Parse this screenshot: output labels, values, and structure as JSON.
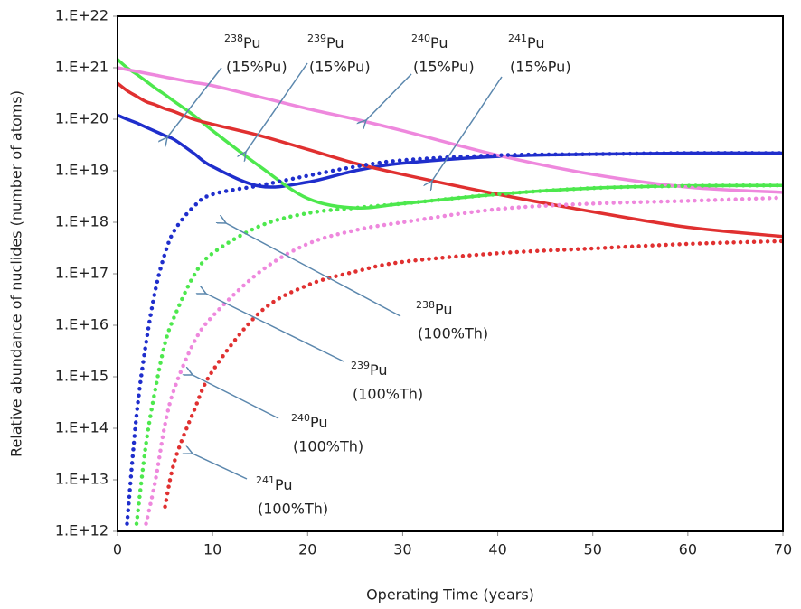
{
  "chart_data": {
    "type": "line",
    "y_log": true,
    "grid": false,
    "x_label": "Operating Time (years)",
    "y_label": "Relative abundance of nuclides (number of atoms)",
    "xlim": [
      0,
      70
    ],
    "xticks": [
      0,
      10,
      20,
      30,
      40,
      50,
      60,
      70
    ],
    "ylim": [
      1000000000000.0,
      1e+22
    ],
    "yticks": [
      {
        "value": 1000000000000.0,
        "label": "1.E+12"
      },
      {
        "value": 10000000000000.0,
        "label": "1.E+13"
      },
      {
        "value": 100000000000000.0,
        "label": "1.E+14"
      },
      {
        "value": 1000000000000000.0,
        "label": "1.E+15"
      },
      {
        "value": 1e+16,
        "label": "1.E+16"
      },
      {
        "value": 1e+17,
        "label": "1.E+17"
      },
      {
        "value": 1e+18,
        "label": "1.E+18"
      },
      {
        "value": 1e+19,
        "label": "1.E+19"
      },
      {
        "value": 1e+20,
        "label": "1.E+20"
      },
      {
        "value": 1e+21,
        "label": "1.E+21"
      },
      {
        "value": 1e+22,
        "label": "1.E+22"
      }
    ],
    "x": [
      0,
      1,
      2,
      3,
      4,
      5,
      6,
      8,
      10,
      15,
      20,
      25,
      30,
      40,
      50,
      60,
      70
    ],
    "series": [
      {
        "color": "#1f2ecc",
        "line_style": "solid",
        "values": [
          1.2e+20,
          1e+20,
          8.5e+19,
          7e+19,
          5.8e+19,
          4.8e+19,
          4e+19,
          2.2e+19,
          1.2e+19,
          5e+18,
          6e+18,
          1e+19,
          1.4e+19,
          1.9e+19,
          2.1e+19,
          2.2e+19,
          2.2e+19
        ]
      },
      {
        "color": "#4de84d",
        "line_style": "solid",
        "values": [
          1.45e+21,
          1e+21,
          7.5e+20,
          5.5e+20,
          4e+20,
          3e+20,
          2.2e+20,
          1.2e+20,
          6e+19,
          1.2e+19,
          2.9e+18,
          1.9e+18,
          2.3e+18,
          3.5e+18,
          4.6e+18,
          5.1e+18,
          5.2e+18
        ]
      },
      {
        "color": "#ee88dd",
        "line_style": "solid",
        "values": [
          1e+21,
          9.2e+20,
          8.5e+20,
          7.8e+20,
          7.2e+20,
          6.6e+20,
          6.1e+20,
          5.2e+20,
          4.5e+20,
          2.7e+20,
          1.6e+20,
          1e+20,
          6e+19,
          2e+19,
          8.5e+18,
          4.8e+18,
          3.8e+18
        ]
      },
      {
        "color": "#e03030",
        "line_style": "solid",
        "values": [
          5e+20,
          3.6e+20,
          2.8e+20,
          2.2e+20,
          1.9e+20,
          1.6e+20,
          1.4e+20,
          1e+20,
          8e+19,
          4.8e+19,
          2.6e+19,
          1.4e+19,
          8.5e+18,
          3.5e+18,
          1.6e+18,
          8e+17,
          5.3e+17
        ]
      },
      {
        "color": "#1f2ecc",
        "line_style": "dotted",
        "values": [
          null,
          1400000000000.0,
          180000000000000.0,
          4500000000000000.0,
          5e+16,
          2.5e+17,
          7e+17,
          2e+18,
          3.5e+18,
          5.2e+18,
          8e+18,
          1.2e+19,
          1.6e+19,
          2e+19,
          2.1e+19,
          2.2e+19,
          2.2e+19
        ]
      },
      {
        "color": "#4de84d",
        "line_style": "dotted",
        "values": [
          null,
          null,
          1400000000000.0,
          50000000000000.0,
          600000000000000.0,
          4500000000000000.0,
          1.5e+16,
          9e+16,
          2.5e+17,
          8.5e+17,
          1.5e+18,
          1.9e+18,
          2.3e+18,
          3.5e+18,
          4.6e+18,
          5.1e+18,
          5.2e+18
        ]
      },
      {
        "color": "#ee88dd",
        "line_style": "dotted",
        "values": [
          null,
          null,
          null,
          1400000000000.0,
          10000000000000.0,
          120000000000000.0,
          600000000000000.0,
          4500000000000000.0,
          1.5e+16,
          1.1e+17,
          3.8e+17,
          7e+17,
          1e+18,
          1.8e+18,
          2.3e+18,
          2.6e+18,
          3e+18
        ]
      },
      {
        "color": "#e03030",
        "line_style": "dotted",
        "values": [
          null,
          null,
          null,
          null,
          null,
          3000000000000.0,
          23000000000000.0,
          210000000000000.0,
          1300000000000000.0,
          1.8e+16,
          6e+16,
          1.1e+17,
          1.7e+17,
          2.5e+17,
          3.1e+17,
          3.8e+17,
          4.3e+17
        ]
      }
    ],
    "annotations": [
      {
        "mass": "238",
        "element": "Pu",
        "note": "(15%Pu)"
      },
      {
        "mass": "239",
        "element": "Pu",
        "note": "(15%Pu)"
      },
      {
        "mass": "240",
        "element": "Pu",
        "note": "(15%Pu)"
      },
      {
        "mass": "241",
        "element": "Pu",
        "note": "(15%Pu)"
      },
      {
        "mass": "238",
        "element": "Pu",
        "note": "(100%Th)"
      },
      {
        "mass": "239",
        "element": "Pu",
        "note": "(100%Th)"
      },
      {
        "mass": "240",
        "element": "Pu",
        "note": "(100%Th)"
      },
      {
        "mass": "241",
        "element": "Pu",
        "note": "(100%Th)"
      }
    ]
  }
}
